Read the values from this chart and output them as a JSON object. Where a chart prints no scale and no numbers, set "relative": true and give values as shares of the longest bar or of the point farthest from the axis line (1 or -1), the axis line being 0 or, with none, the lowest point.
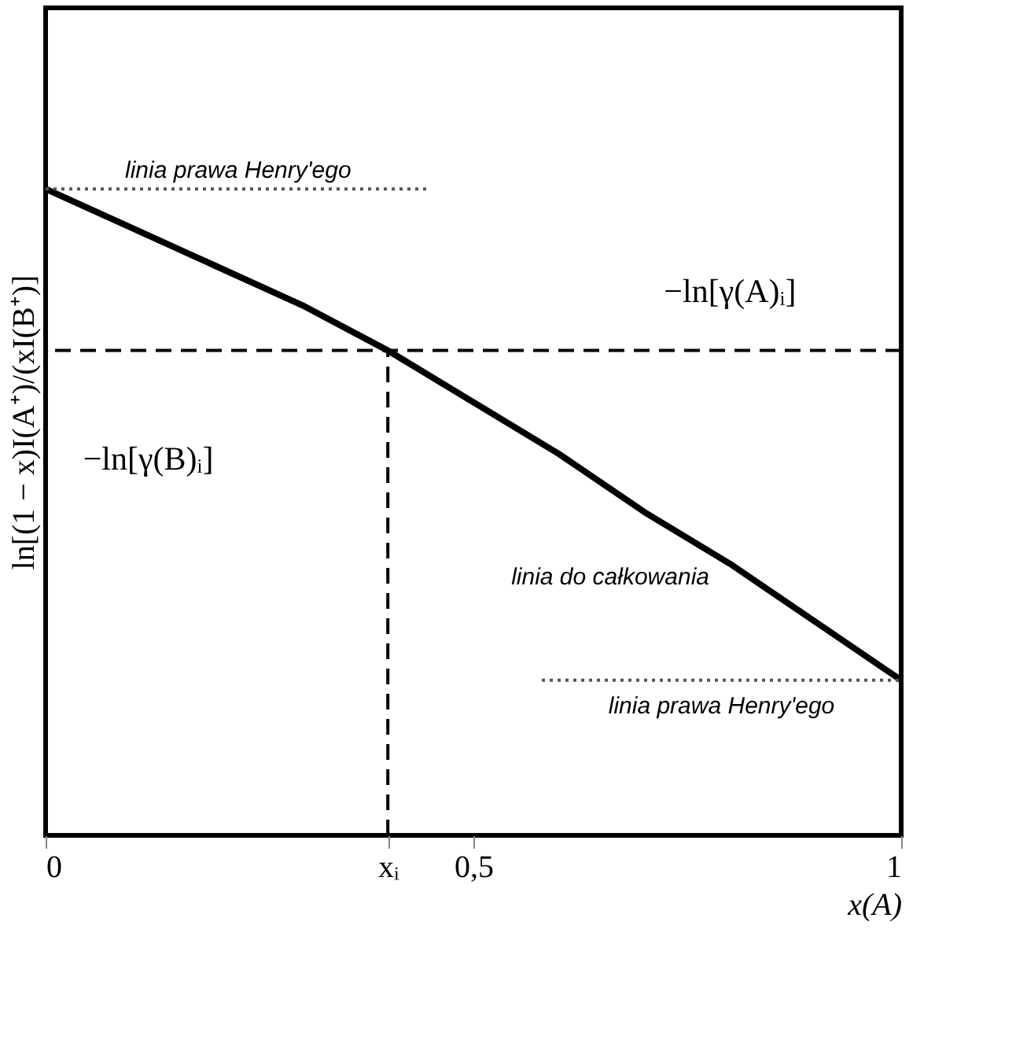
{
  "chart_data": {
    "type": "line",
    "relative": true,
    "xlabel": "x(A)",
    "ylabel": "ln[(1 − x)I(A⁺)/(xI(B⁺)]",
    "xlim": [
      0,
      1
    ],
    "xticks": [
      {
        "value": 0,
        "label": "0"
      },
      {
        "value": 0.4,
        "label": "xᵢ"
      },
      {
        "value": 0.5,
        "label": "0,5"
      },
      1
    ],
    "grid": false,
    "tick_labels": "x",
    "series": [
      {
        "color": "#000000",
        "line_style": "solid",
        "x": [
          0,
          0.1,
          0.2,
          0.3,
          0.4,
          0.5,
          0.6,
          0.7,
          0.8,
          0.9,
          1
        ],
        "values": [
          1,
          0.94,
          0.88,
          0.82,
          0.75,
          0.67,
          0.59,
          0.5,
          0.42,
          0.33,
          0.24
        ]
      },
      {
        "name": "linia prawa Henry'ego",
        "color": "#555555",
        "line_style": "dotted",
        "x": [
          0,
          0.45
        ],
        "values": [
          1,
          1
        ]
      },
      {
        "name": "linia prawa Henry'ego",
        "color": "#555555",
        "line_style": "dotted",
        "x": [
          0.58,
          1
        ],
        "values": [
          0.24,
          0.24
        ]
      },
      {
        "color": "#000000",
        "line_style": "dashed",
        "x": [
          0.4,
          0.4
        ],
        "values": [
          0,
          0.75
        ]
      }
    ],
    "ref_lines": [
      {
        "axis": "y",
        "value": 0.75,
        "color": "#000000",
        "line_style": "dashed"
      }
    ],
    "annotations": [
      "−ln[γ(A)ᵢ]",
      "−ln[γ(B)ᵢ]",
      "linia do całkowania"
    ]
  }
}
